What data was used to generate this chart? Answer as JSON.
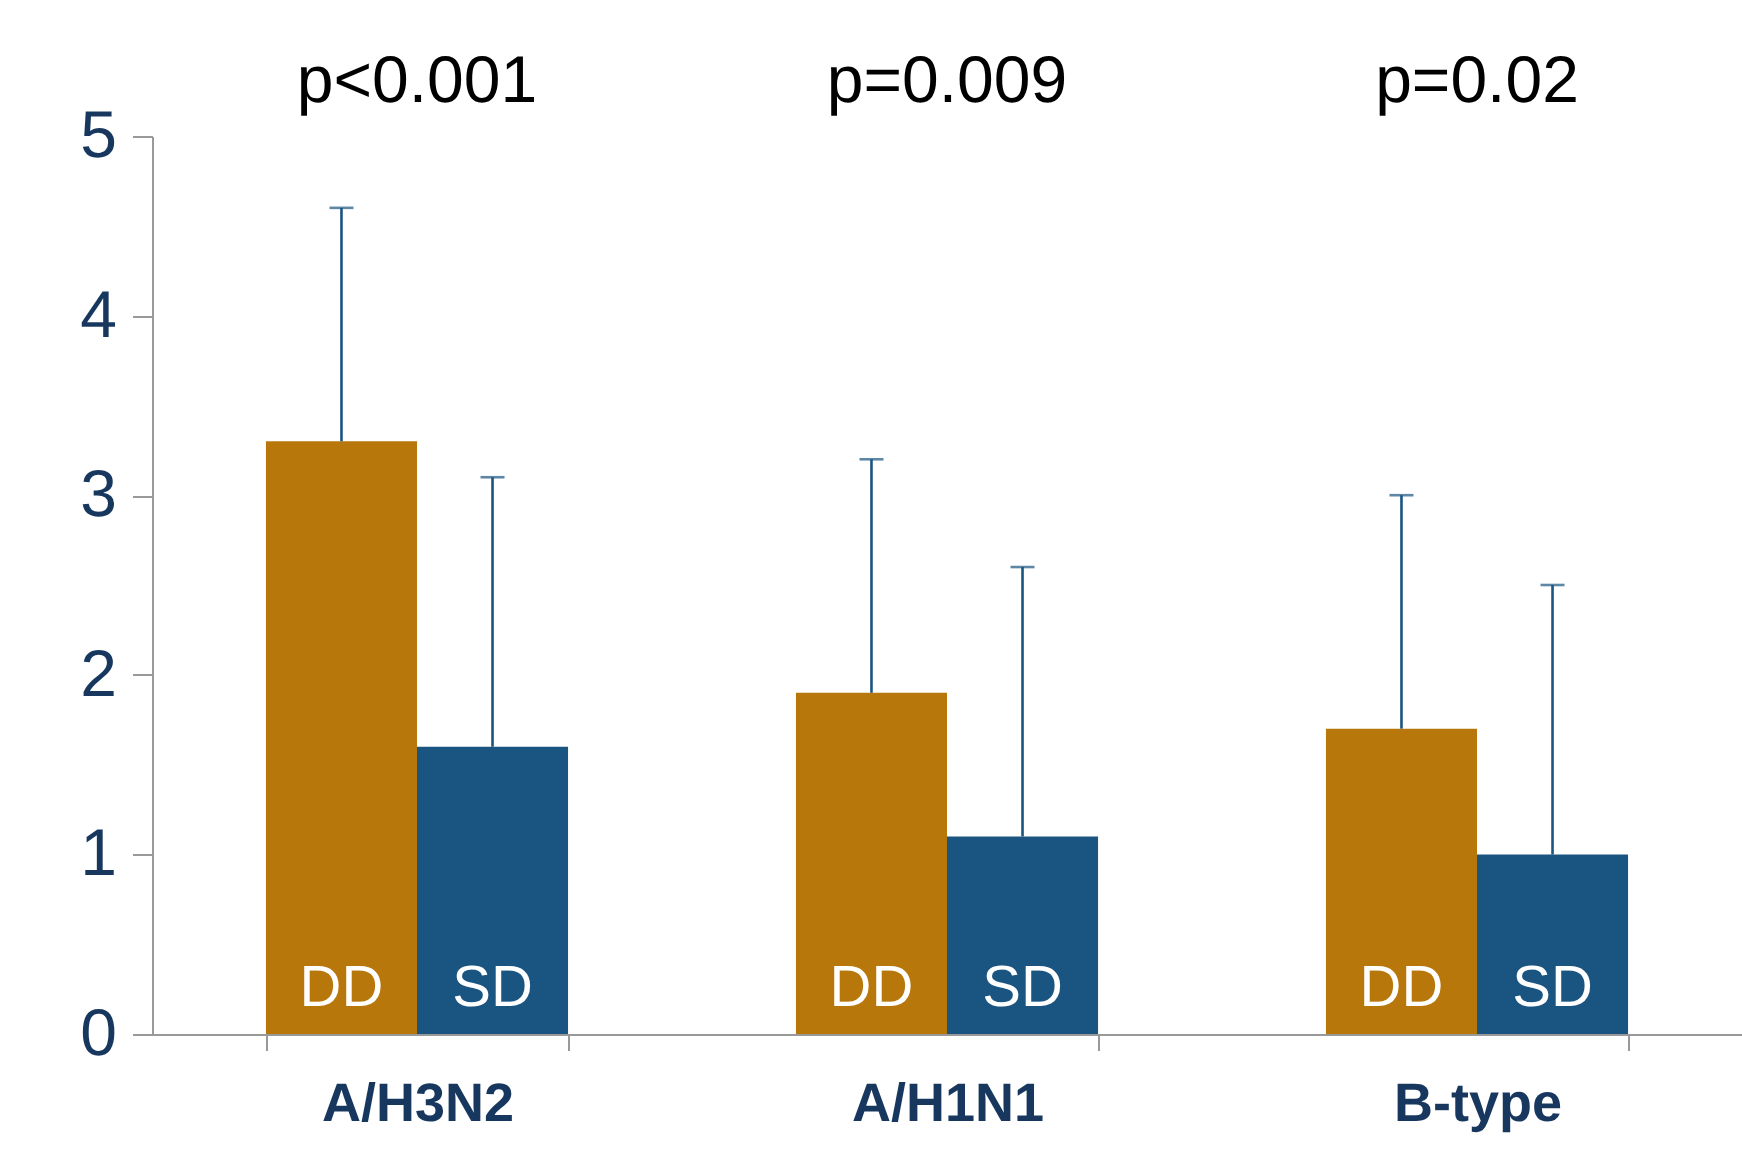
{
  "chart_data": {
    "type": "bar",
    "categories": [
      "A/H3N2",
      "A/H1N1",
      "B-type"
    ],
    "series": [
      {
        "name": "DD",
        "color": "#b8770b",
        "values": [
          3.3,
          1.9,
          1.7
        ],
        "errors": [
          [
            3.3,
            4.6
          ],
          [
            1.9,
            3.2
          ],
          [
            1.7,
            3.0
          ]
        ]
      },
      {
        "name": "SD",
        "color": "#1a5480",
        "values": [
          1.6,
          1.1,
          1.0
        ],
        "errors": [
          [
            1.6,
            3.1
          ],
          [
            1.1,
            2.6
          ],
          [
            1.0,
            2.5
          ]
        ]
      }
    ],
    "ylim": [
      0,
      5
    ],
    "yticks": [
      0,
      1,
      2,
      3,
      4,
      5
    ],
    "grid": false,
    "annotations": [
      "p<0.001",
      "p=0.009",
      "p=0.02"
    ]
  }
}
